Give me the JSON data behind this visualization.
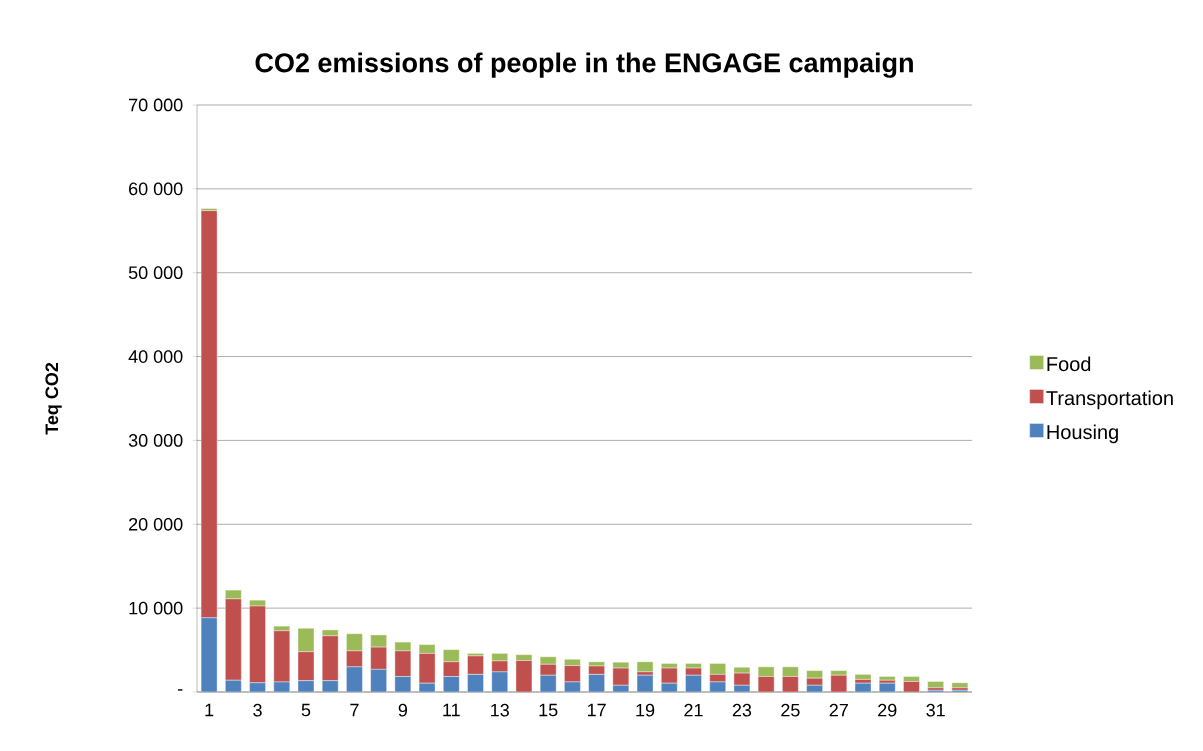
{
  "chart_data": {
    "type": "bar",
    "stacked": true,
    "title": "CO2 emissions of people in the ENGAGE campaign",
    "ylabel": "Teq CO2",
    "categories": [
      "1",
      null,
      "3",
      null,
      "5",
      null,
      "7",
      null,
      "9",
      null,
      "11",
      null,
      "13",
      null,
      "15",
      null,
      "17",
      null,
      "19",
      null,
      "21",
      null,
      "23",
      null,
      "25",
      null,
      "27",
      null,
      "29",
      null,
      "31",
      null
    ],
    "series": [
      {
        "name": "Housing",
        "color": "#4f81bd",
        "values": [
          8850,
          1400,
          1100,
          1200,
          1350,
          1350,
          3000,
          2700,
          1850,
          1050,
          1850,
          2100,
          2400,
          0,
          2000,
          1200,
          2100,
          800,
          2000,
          1050,
          2000,
          1200,
          800,
          0,
          0,
          800,
          0,
          1050,
          1050,
          0,
          200,
          200
        ]
      },
      {
        "name": "Transportation",
        "color": "#c0504d",
        "values": [
          48550,
          9700,
          9150,
          6100,
          3450,
          5350,
          1900,
          2650,
          3050,
          3550,
          1750,
          2200,
          1300,
          3750,
          1300,
          1950,
          1000,
          2050,
          400,
          1800,
          850,
          900,
          1450,
          1850,
          1850,
          850,
          2000,
          450,
          350,
          1250,
          300,
          300
        ]
      },
      {
        "name": "Food",
        "color": "#9bbb59",
        "values": [
          250,
          1050,
          700,
          550,
          2800,
          700,
          2050,
          1450,
          1050,
          1050,
          1450,
          300,
          900,
          700,
          900,
          750,
          500,
          700,
          1200,
          550,
          550,
          1300,
          700,
          1150,
          1150,
          900,
          550,
          600,
          450,
          600,
          750,
          600
        ]
      }
    ],
    "ylim": [
      0,
      70000
    ],
    "yticks": [
      {
        "value": 0,
        "label": "-"
      },
      {
        "value": 10000,
        "label": "10 000"
      },
      {
        "value": 20000,
        "label": "20 000"
      },
      {
        "value": 30000,
        "label": "30 000"
      },
      {
        "value": 40000,
        "label": "40 000"
      },
      {
        "value": 50000,
        "label": "50 000"
      },
      {
        "value": 60000,
        "label": "60 000"
      },
      {
        "value": 70000,
        "label": "70 000"
      }
    ],
    "grid": "y",
    "legend": "right"
  }
}
